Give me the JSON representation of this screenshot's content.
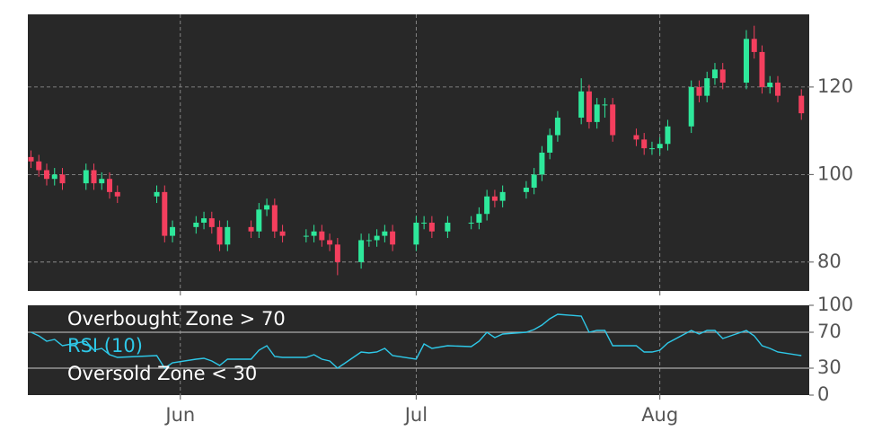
{
  "chart_data": [
    {
      "type": "candlestick",
      "x": [
        12,
        13,
        14,
        15,
        16,
        19,
        20,
        21,
        22,
        23,
        28,
        29,
        30,
        33,
        34,
        35,
        36,
        37,
        40,
        41,
        42,
        43,
        44,
        47,
        48,
        49,
        50,
        51,
        54,
        55,
        56,
        57,
        58,
        61,
        62,
        63,
        65,
        68,
        69,
        70,
        71,
        72,
        75,
        76,
        77,
        78,
        79,
        82,
        83,
        84,
        85,
        86,
        89,
        90,
        91,
        92,
        93,
        96,
        97,
        98,
        99,
        100,
        103,
        104,
        105,
        106,
        107,
        110
      ],
      "open": [
        104,
        103,
        101,
        99,
        100,
        98,
        101,
        98,
        99,
        96,
        95,
        96,
        86,
        88,
        89,
        90,
        88,
        84,
        88,
        87,
        92,
        93,
        87,
        86,
        86,
        87,
        85,
        84,
        80,
        85,
        85,
        86,
        87,
        84,
        89,
        89,
        87,
        89,
        89,
        91,
        95,
        94,
        96,
        97,
        100,
        105,
        109,
        113,
        119,
        112,
        116,
        116,
        109,
        108,
        106,
        106,
        107,
        111,
        120,
        118,
        122,
        124,
        121,
        131,
        128,
        120,
        121,
        118
      ],
      "high": [
        105.5,
        104.5,
        102.5,
        101.5,
        101.5,
        102.5,
        102.5,
        100.5,
        100.5,
        97.5,
        97.5,
        97.5,
        89.5,
        90.5,
        91.5,
        91.5,
        89.5,
        89.5,
        89.5,
        93.5,
        94.5,
        94.5,
        88.5,
        87.5,
        88.5,
        88.5,
        86.5,
        85.5,
        86.5,
        86.5,
        87.5,
        88.5,
        88.5,
        90.5,
        90.5,
        90.5,
        90.5,
        90.5,
        92.5,
        96.5,
        96.5,
        97.5,
        98.5,
        101.5,
        106.5,
        110.5,
        114.5,
        122,
        120.5,
        117.5,
        117.5,
        117.5,
        110.5,
        109.5,
        107.5,
        108.5,
        112.5,
        121.5,
        121.5,
        123.5,
        125.5,
        125.5,
        133,
        134,
        129.5,
        122.5,
        122.5,
        119.5
      ],
      "low": [
        101.5,
        99.5,
        97.5,
        97.5,
        96.5,
        96.5,
        96.5,
        96.5,
        94.5,
        93.5,
        93.5,
        84.5,
        84.5,
        86.5,
        87.5,
        86.5,
        82.5,
        82.5,
        85.5,
        85.5,
        90.5,
        85.5,
        84.5,
        84.5,
        84.5,
        83.5,
        82.5,
        77,
        78.5,
        83.5,
        83.5,
        84.5,
        82.5,
        82.5,
        87.5,
        85.5,
        85.5,
        87.5,
        87.5,
        89.5,
        92.5,
        92.5,
        94.5,
        95.5,
        98.5,
        103.5,
        107.5,
        111.5,
        110.5,
        110.5,
        113,
        107.5,
        106.5,
        104.5,
        104.5,
        104.5,
        105.5,
        109.5,
        116.5,
        116.5,
        120.5,
        119.5,
        119.5,
        126.5,
        118.5,
        118.5,
        116.5,
        112.5
      ],
      "close": [
        103,
        101,
        99,
        100,
        98,
        101,
        98,
        99,
        96,
        95,
        96,
        86,
        88,
        89,
        90,
        88,
        84,
        88,
        87,
        92,
        93,
        87,
        86,
        86,
        87,
        85,
        84,
        80,
        85,
        85,
        86,
        87,
        84,
        89,
        89,
        87,
        89,
        89,
        91,
        95,
        94,
        96,
        97,
        100,
        105,
        109,
        113,
        119,
        112,
        116,
        116,
        109,
        108,
        106,
        106,
        107,
        111,
        120,
        118,
        122,
        124,
        121,
        131,
        128,
        120,
        121,
        118,
        114
      ],
      "up_color": "#2ee89b",
      "down_color": "#f43f5e",
      "xlim": [
        11.6,
        111
      ],
      "xticks": [
        31,
        61,
        92
      ],
      "ylim": [
        73.4,
        136.6
      ],
      "yticks": [
        80,
        100,
        120
      ],
      "grid": true
    },
    {
      "type": "line",
      "x": [
        12,
        13,
        14,
        15,
        16,
        19,
        20,
        21,
        22,
        23,
        28,
        29,
        30,
        33,
        34,
        35,
        36,
        37,
        40,
        41,
        42,
        43,
        44,
        47,
        48,
        49,
        50,
        51,
        54,
        55,
        56,
        57,
        58,
        61,
        62,
        63,
        65,
        68,
        69,
        70,
        71,
        72,
        75,
        76,
        77,
        78,
        79,
        82,
        83,
        84,
        85,
        86,
        89,
        90,
        91,
        92,
        93,
        96,
        97,
        98,
        99,
        100,
        103,
        104,
        105,
        106,
        107,
        110
      ],
      "series": [
        {
          "name": "RSI (10)",
          "color": "#2ec8e8",
          "values": [
            70,
            66,
            60,
            62,
            55,
            60,
            50,
            52,
            45,
            42,
            44,
            30,
            36,
            40,
            41,
            38,
            33,
            40,
            40,
            50,
            55,
            43,
            42,
            42,
            45,
            40,
            38,
            30,
            48,
            47,
            48,
            52,
            44,
            40,
            57,
            52,
            55,
            54,
            60,
            70,
            64,
            68,
            70,
            73,
            78,
            85,
            90,
            88,
            70,
            72,
            72,
            55,
            55,
            48,
            48,
            50,
            58,
            72,
            68,
            72,
            72,
            63,
            72,
            66,
            55,
            52,
            48,
            44
          ]
        }
      ],
      "reference_lines": [
        {
          "value": 70,
          "label": "Overbought Zone > 70"
        },
        {
          "value": 30,
          "label": "Oversold Zone < 30"
        }
      ],
      "xlim": [
        11.6,
        111
      ],
      "xticks": [
        {
          "value": 31,
          "label": "Jun"
        },
        {
          "value": 61,
          "label": "Jul"
        },
        {
          "value": 92,
          "label": "Aug"
        }
      ],
      "ylim": [
        0,
        100
      ],
      "yticks": [
        0,
        30,
        70,
        100
      ],
      "grid": true
    }
  ]
}
